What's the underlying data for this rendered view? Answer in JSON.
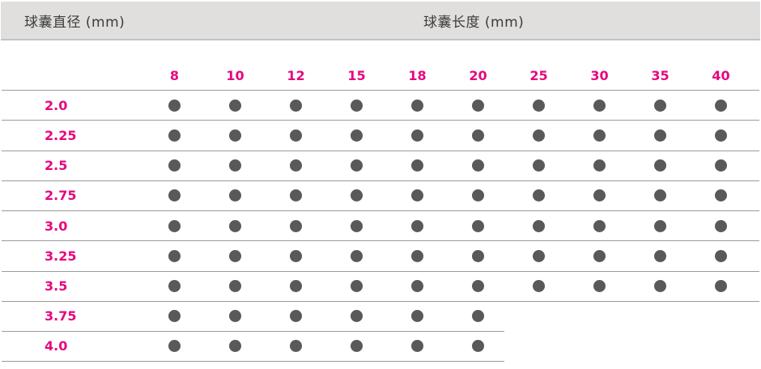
{
  "header": {
    "diameter_label": "球囊直径 (mm)",
    "length_label": "球囊长度 (mm)"
  },
  "matrix": {
    "columns": [
      "8",
      "10",
      "12",
      "15",
      "18",
      "20",
      "25",
      "30",
      "35",
      "40"
    ],
    "rows": [
      {
        "label": "2.0",
        "available": [
          1,
          1,
          1,
          1,
          1,
          1,
          1,
          1,
          1,
          1
        ]
      },
      {
        "label": "2.25",
        "available": [
          1,
          1,
          1,
          1,
          1,
          1,
          1,
          1,
          1,
          1
        ]
      },
      {
        "label": "2.5",
        "available": [
          1,
          1,
          1,
          1,
          1,
          1,
          1,
          1,
          1,
          1
        ]
      },
      {
        "label": "2.75",
        "available": [
          1,
          1,
          1,
          1,
          1,
          1,
          1,
          1,
          1,
          1
        ]
      },
      {
        "label": "3.0",
        "available": [
          1,
          1,
          1,
          1,
          1,
          1,
          1,
          1,
          1,
          1
        ]
      },
      {
        "label": "3.25",
        "available": [
          1,
          1,
          1,
          1,
          1,
          1,
          1,
          1,
          1,
          1
        ]
      },
      {
        "label": "3.5",
        "available": [
          1,
          1,
          1,
          1,
          1,
          1,
          1,
          1,
          1,
          1
        ]
      },
      {
        "label": "3.75",
        "available": [
          1,
          1,
          1,
          1,
          1,
          1,
          0,
          0,
          0,
          0
        ]
      },
      {
        "label": "4.0",
        "available": [
          1,
          1,
          1,
          1,
          1,
          1,
          0,
          0,
          0,
          0
        ]
      }
    ]
  },
  "colors": {
    "accent_pink": "#e6077f",
    "dot_gray": "#59595b",
    "header_band_bg": "#e0dfdd",
    "header_band_border": "#c2c2c2",
    "line_gray": "#9b9b9b",
    "text_dark": "#3c3c3c"
  }
}
